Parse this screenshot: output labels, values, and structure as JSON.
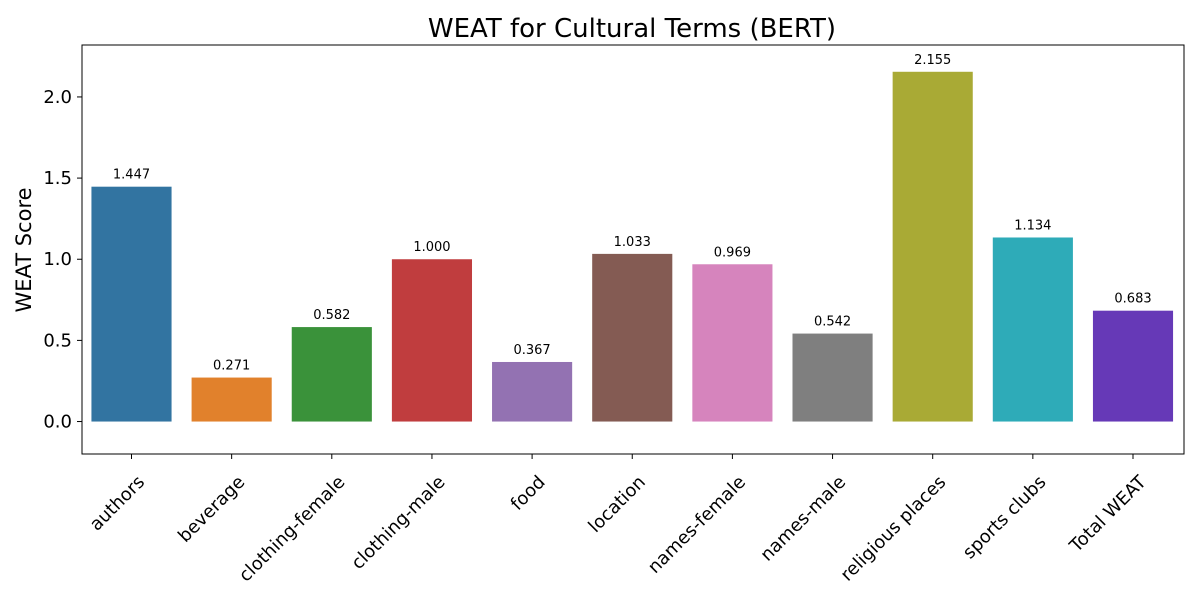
{
  "chart_data": {
    "type": "bar",
    "title": "WEAT for Cultural Terms (BERT)",
    "xlabel": "",
    "ylabel": "WEAT Score",
    "ylim": [
      -0.2,
      2.32
    ],
    "yticks": [
      "0.0",
      "0.5",
      "1.0",
      "1.5",
      "2.0"
    ],
    "categories": [
      "authors",
      "beverage",
      "clothing-female",
      "clothing-male",
      "food",
      "location",
      "names-female",
      "names-male",
      "religious places",
      "sports clubs",
      "Total WEAT"
    ],
    "values": [
      1.447,
      0.271,
      0.582,
      1.0,
      0.367,
      1.033,
      0.969,
      0.542,
      2.155,
      1.134,
      0.683
    ],
    "value_labels": [
      "1.447",
      "0.271",
      "0.582",
      "1.000",
      "0.367",
      "1.033",
      "0.969",
      "0.542",
      "2.155",
      "1.134",
      "0.683"
    ],
    "colors": [
      "#3274a1",
      "#e1812c",
      "#3a923a",
      "#c03d3e",
      "#9372b2",
      "#845b53",
      "#d684bd",
      "#7f7f7f",
      "#a9aa35",
      "#2eabb8",
      "#6639b7"
    ],
    "grid": false,
    "legend": "none"
  }
}
